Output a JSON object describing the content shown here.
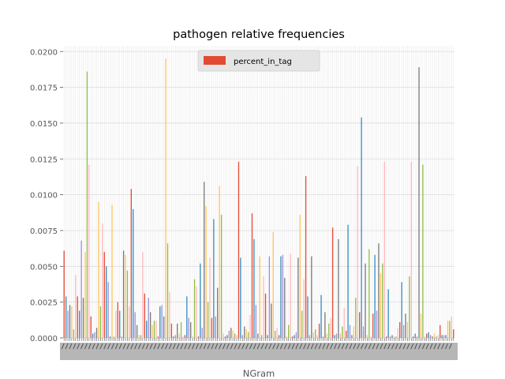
{
  "chart_data": {
    "type": "bar",
    "title": "pathogen relative frequencies",
    "xlabel": "NGram",
    "ylabel": "",
    "ylim": [
      0,
      0.0204
    ],
    "yticks": [
      0.0,
      0.0025,
      0.005,
      0.0075,
      0.01,
      0.0125,
      0.015,
      0.0175,
      0.02
    ],
    "ytick_labels": [
      "0.0000",
      "0.0025",
      "0.0050",
      "0.0075",
      "0.0100",
      "0.0125",
      "0.0150",
      "0.0175",
      "0.0200"
    ],
    "grid": true,
    "legend": {
      "placement": "top-center",
      "entries": [
        "percent_in_tag"
      ],
      "color": "#E24A33"
    },
    "palette": [
      "#E24A33",
      "#348ABD",
      "#988ED5",
      "#777777",
      "#FBC15E",
      "#8EBA42",
      "#FFB5B8"
    ],
    "series": [
      {
        "name": "percent_in_tag",
        "values": [
          0.0061,
          0.0029,
          0.0019,
          0.0023,
          0.0022,
          0.0006,
          0.0044,
          0.0029,
          0.0019,
          0.0068,
          0.0028,
          0.006,
          0.0186,
          0.0121,
          0.0015,
          0.0003,
          0.0004,
          0.0007,
          0.0095,
          0.0022,
          0.008,
          0.006,
          0.005,
          0.0039,
          0.0001,
          0.0093,
          0.0001,
          0.0019,
          0.0025,
          0.0019,
          0.0001,
          0.0061,
          0.0058,
          0.0047,
          0.0022,
          0.0104,
          0.009,
          0.0018,
          0.0009,
          0.0002,
          0.0002,
          0.006,
          0.0031,
          0.0012,
          0.0028,
          0.0018,
          0.0009,
          0.0012,
          0.0012,
          0.0001,
          0.0022,
          0.0023,
          0.0015,
          0.0195,
          0.0066,
          0.0032,
          0.001,
          0.0001,
          0.0002,
          0.001,
          0.0003,
          0.0011,
          0.0001,
          0.0002,
          0.0029,
          0.0014,
          0.0011,
          0.0001,
          0.0041,
          0.0036,
          0.0001,
          0.0052,
          0.0007,
          0.0109,
          0.0092,
          0.0025,
          0.0056,
          0.0014,
          0.0083,
          0.0015,
          0.0035,
          0.0106,
          0.0086,
          0.0003,
          0.0001,
          0.0002,
          0.0005,
          0.0007,
          0.0005,
          0.0003,
          0.0002,
          0.0123,
          0.0056,
          0.0002,
          0.0008,
          0.0006,
          0.0004,
          0.0016,
          0.0087,
          0.0069,
          0.0023,
          0.0003,
          0.0057,
          0.0002,
          0.0043,
          0.0031,
          0.0002,
          0.0057,
          0.0024,
          0.0074,
          0.0005,
          0.0007,
          0.0002,
          0.0057,
          0.0058,
          0.0042,
          0.0001,
          0.0009,
          0.0059,
          0.0001,
          0.0002,
          0.0004,
          0.0056,
          0.0086,
          0.0019,
          0.0041,
          0.0113,
          0.0029,
          0.0002,
          0.0057,
          0.0004,
          0.0006,
          0.0002,
          0.001,
          0.003,
          0.0001,
          0.0018,
          0.0003,
          0.001,
          0.0014,
          0.0077,
          0.0002,
          0.0003,
          0.0069,
          0.0003,
          0.0008,
          0.0021,
          0.0005,
          0.0079,
          0.0009,
          0.0002,
          0.0008,
          0.0028,
          0.012,
          0.0018,
          0.0154,
          0.0008,
          0.0052,
          0.0002,
          0.0062,
          0.0001,
          0.0017,
          0.0058,
          0.0019,
          0.0066,
          0.0045,
          0.0052,
          0.0123,
          0.0001,
          0.0034,
          0.0001,
          0.0002,
          0.0001,
          0.0001,
          0.0007,
          0.0011,
          0.0039,
          0.0009,
          0.0017,
          0.0011,
          0.0043,
          0.0123,
          0.0001,
          0.0003,
          0.0001,
          0.0189,
          0.0017,
          0.0121,
          0.0001,
          0.0003,
          0.0004,
          0.0002,
          0.0001,
          0.0003,
          0.0001,
          0.0002,
          0.0009,
          0.0002,
          0.0002,
          0.0002,
          0.0012,
          0.0012,
          0.0015,
          0.0006
        ]
      }
    ]
  }
}
